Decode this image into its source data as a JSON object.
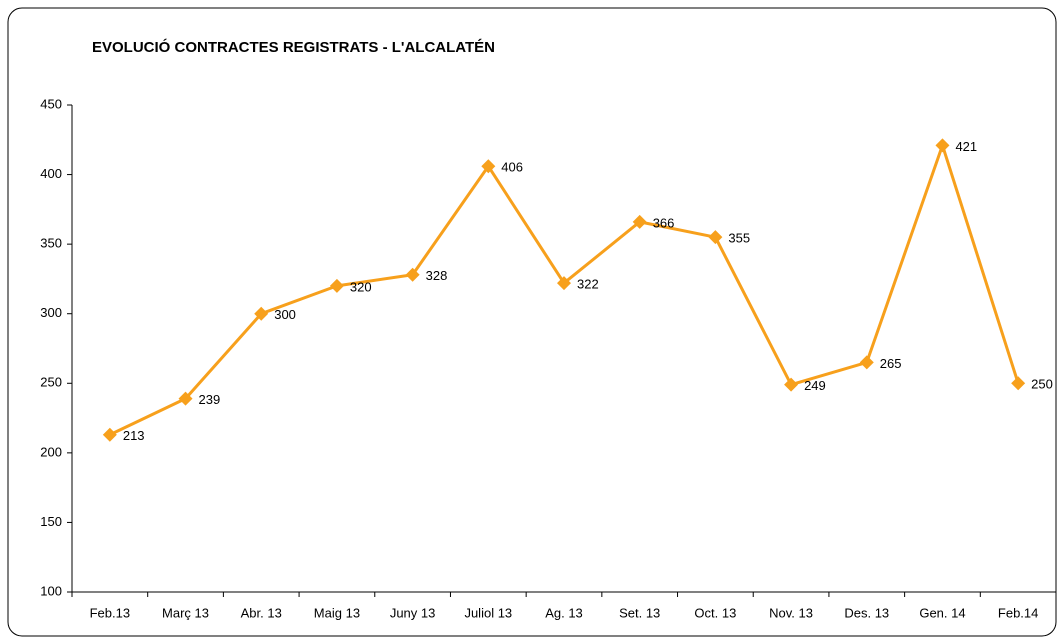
{
  "chart_data": {
    "type": "line",
    "title": "EVOLUCIÓ CONTRACTES REGISTRATS - L'ALCALATÉN",
    "categories": [
      "Feb.13",
      "Març 13",
      "Abr. 13",
      "Maig 13",
      "Juny 13",
      "Juliol 13",
      "Ag. 13",
      "Set. 13",
      "Oct. 13",
      "Nov. 13",
      "Des. 13",
      "Gen. 14",
      "Feb.14"
    ],
    "values": [
      213,
      239,
      300,
      320,
      328,
      406,
      322,
      366,
      355,
      249,
      265,
      421,
      250
    ],
    "color": "#f7a01c",
    "ylim": [
      100,
      450
    ],
    "yticks": [
      100,
      150,
      200,
      250,
      300,
      350,
      400,
      450
    ],
    "grid": false
  }
}
